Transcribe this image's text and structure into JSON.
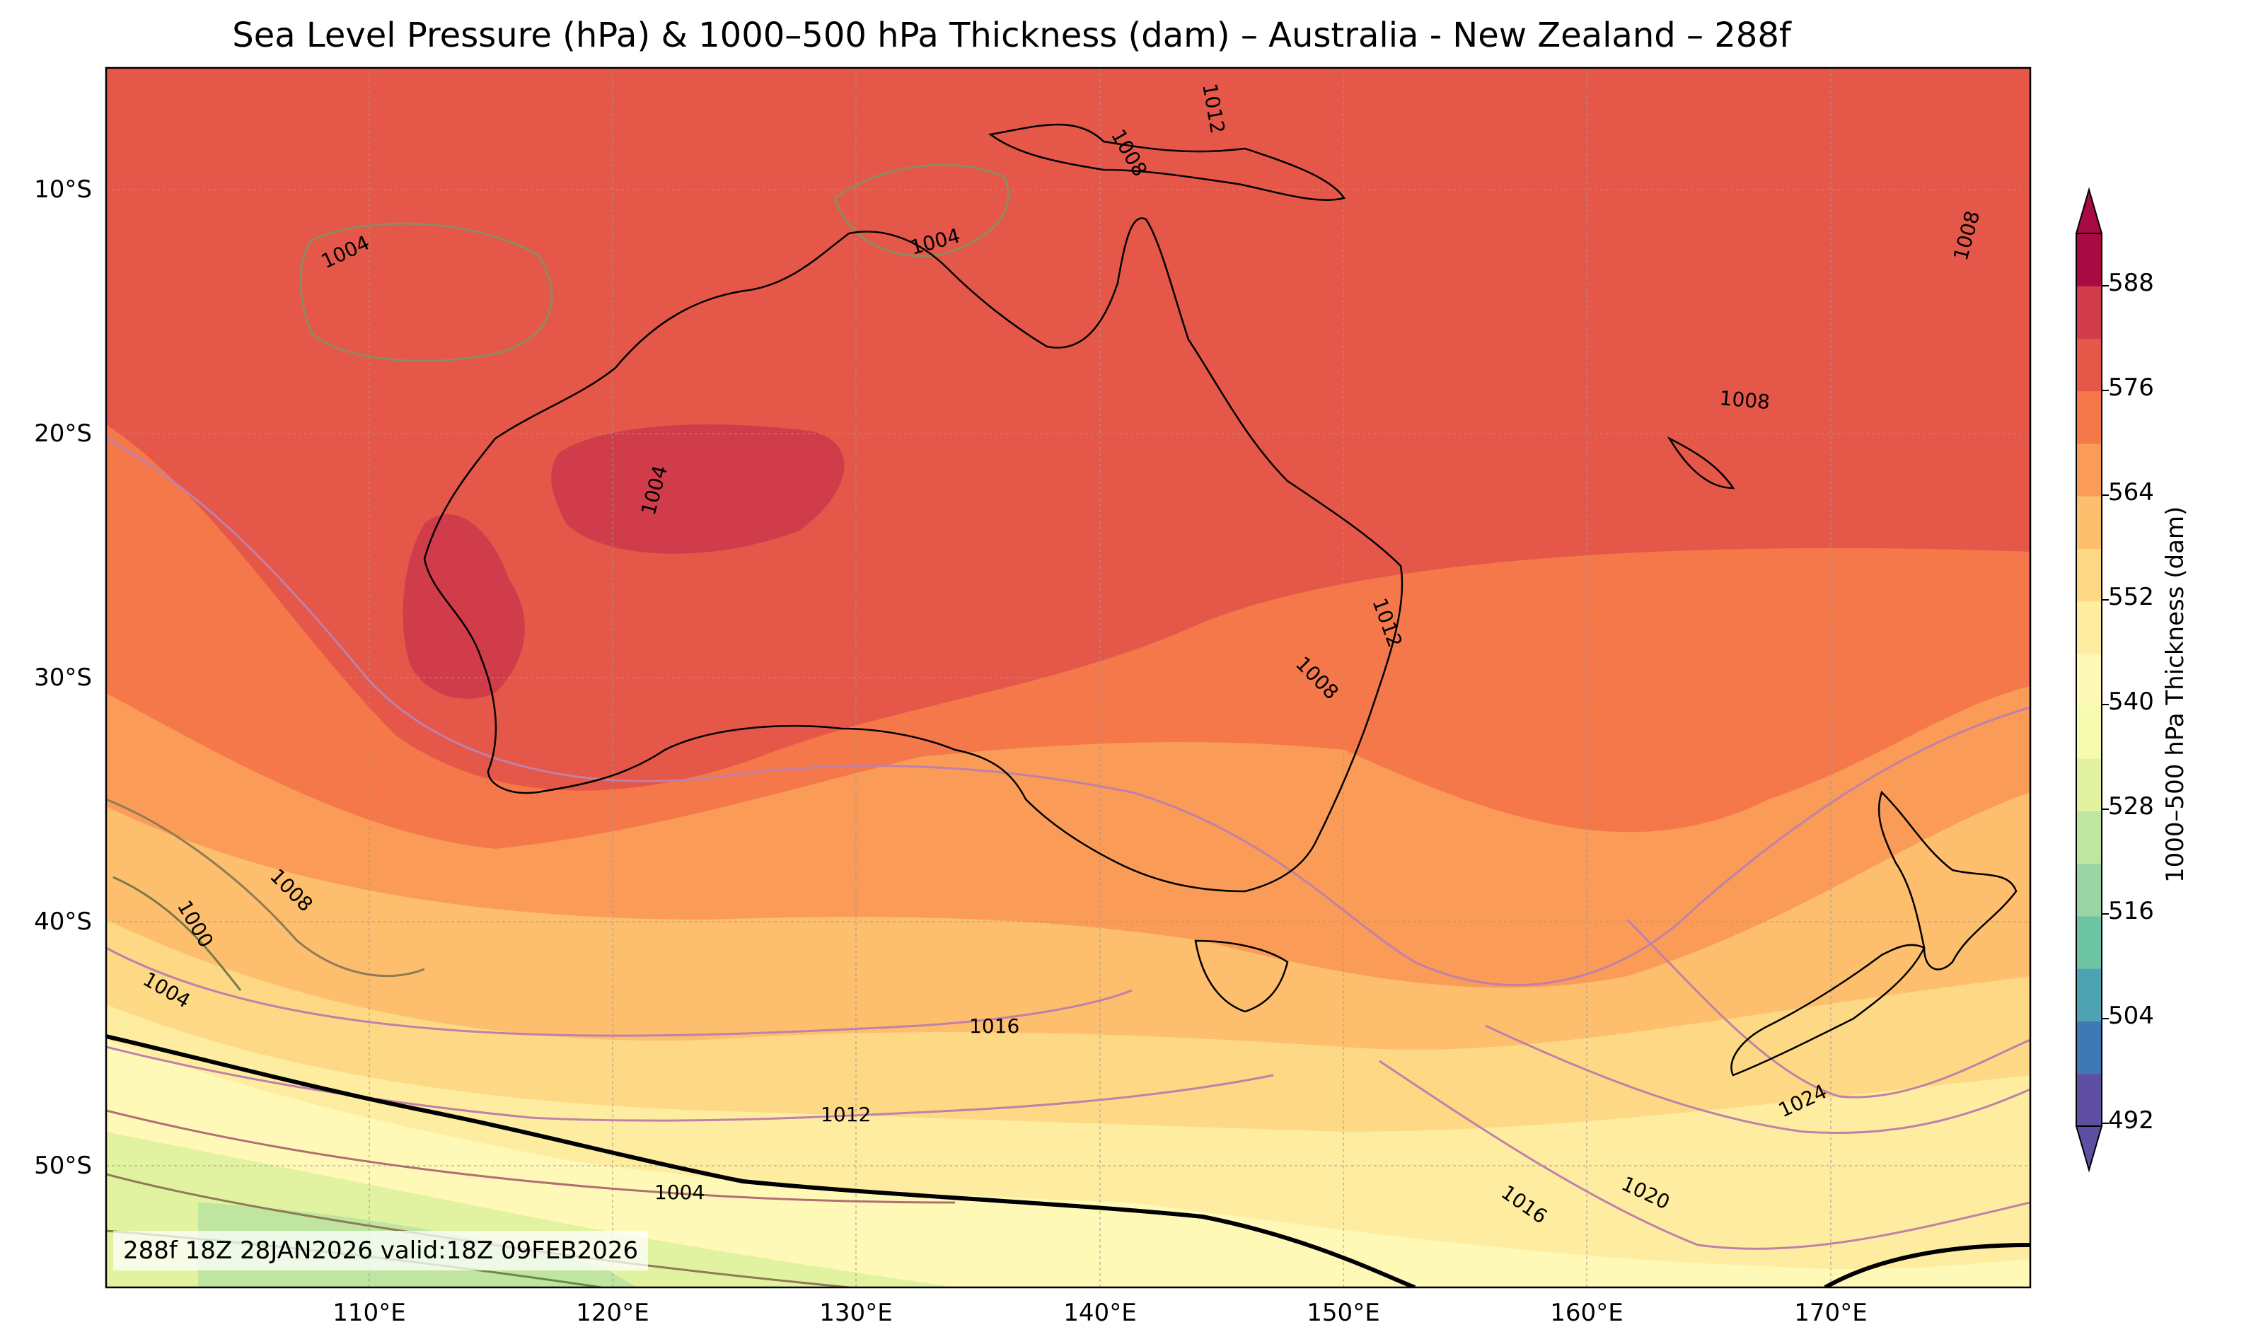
{
  "title": "Sea Level Pressure (hPa) & 1000–500 hPa Thickness (dam) – Australia - New Zealand – 288f",
  "map": {
    "lon_range": [
      100,
      179
    ],
    "lat_range": [
      -55,
      -5
    ],
    "lat_labels": [
      "10°S",
      "20°S",
      "30°S",
      "40°S",
      "50°S"
    ],
    "lon_labels": [
      "110°E",
      "120°E",
      "130°E",
      "140°E",
      "150°E",
      "160°E",
      "170°E"
    ],
    "gridlines": true
  },
  "colorbar": {
    "label": "1000–500 hPa Thickness (dam)",
    "ticks": [
      "588",
      "576",
      "564",
      "552",
      "540",
      "528",
      "516",
      "504",
      "492"
    ],
    "extend": "both",
    "colors": [
      "#5e4fa2",
      "#3f79b5",
      "#4da3b1",
      "#6cc4a4",
      "#99d5a4",
      "#bfe5a0",
      "#e1f3a0",
      "#f7fbb0",
      "#fff9b8",
      "#feeda1",
      "#fdd985",
      "#fdbe6e",
      "#fa9c58",
      "#f5784b",
      "#e55749",
      "#d13c4b",
      "#a80b44"
    ]
  },
  "contour_labels": [
    "1004",
    "1004",
    "1004",
    "1008",
    "1008",
    "1008",
    "1008",
    "1012",
    "1012",
    "1008",
    "1000",
    "1004",
    "1016",
    "1012",
    "1004",
    "1016",
    "1020",
    "1024"
  ],
  "run_info": "288f 18Z 28JAN2026 valid:18Z 09FEB2026"
}
